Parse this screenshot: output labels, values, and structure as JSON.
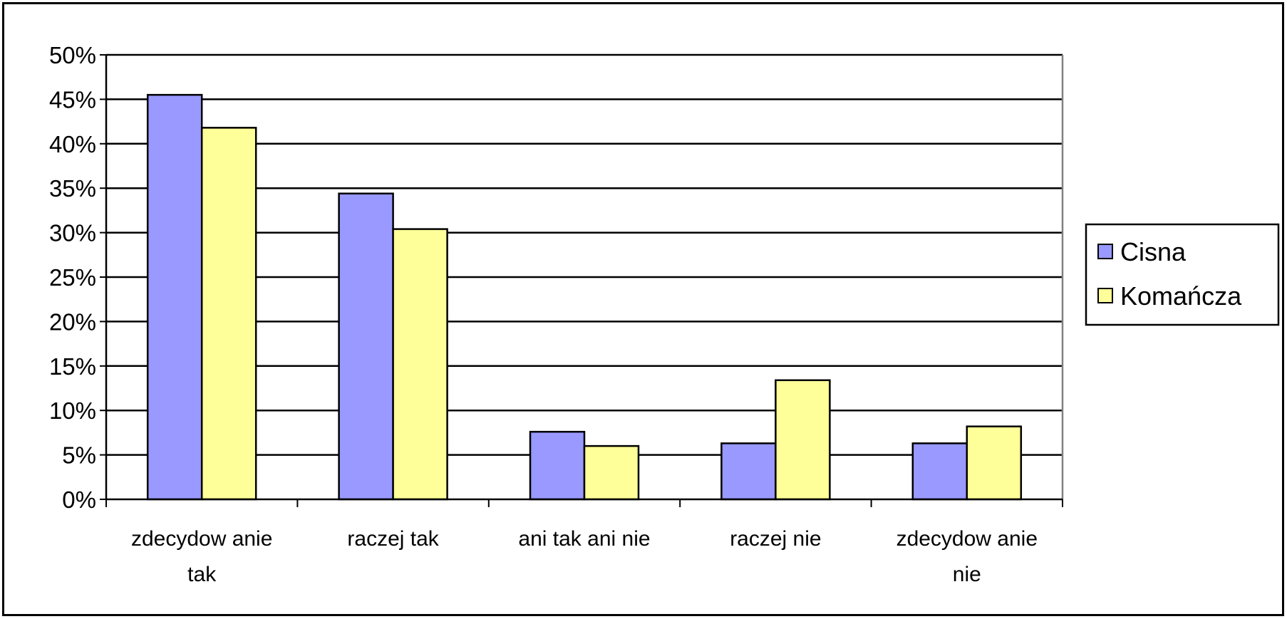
{
  "chart_data": {
    "type": "bar",
    "categories": [
      [
        "zdecydow anie",
        "tak"
      ],
      [
        "raczej tak"
      ],
      [
        "ani tak ani nie"
      ],
      [
        "raczej nie"
      ],
      [
        "zdecydow anie",
        "nie"
      ]
    ],
    "series": [
      {
        "name": "Cisna",
        "color": "#9999ff",
        "values": [
          45.5,
          34.4,
          7.6,
          6.3,
          6.3
        ]
      },
      {
        "name": "Komańcza",
        "color": "#ffff99",
        "values": [
          41.8,
          30.4,
          6.0,
          13.4,
          8.2
        ]
      }
    ],
    "y_ticks": [
      "0%",
      "5%",
      "10%",
      "15%",
      "20%",
      "25%",
      "30%",
      "35%",
      "40%",
      "45%",
      "50%"
    ],
    "ylim": [
      0,
      50
    ],
    "y_unit": "%",
    "grid": true,
    "legend_position": "right",
    "title": "",
    "xlabel": "",
    "ylabel": ""
  }
}
